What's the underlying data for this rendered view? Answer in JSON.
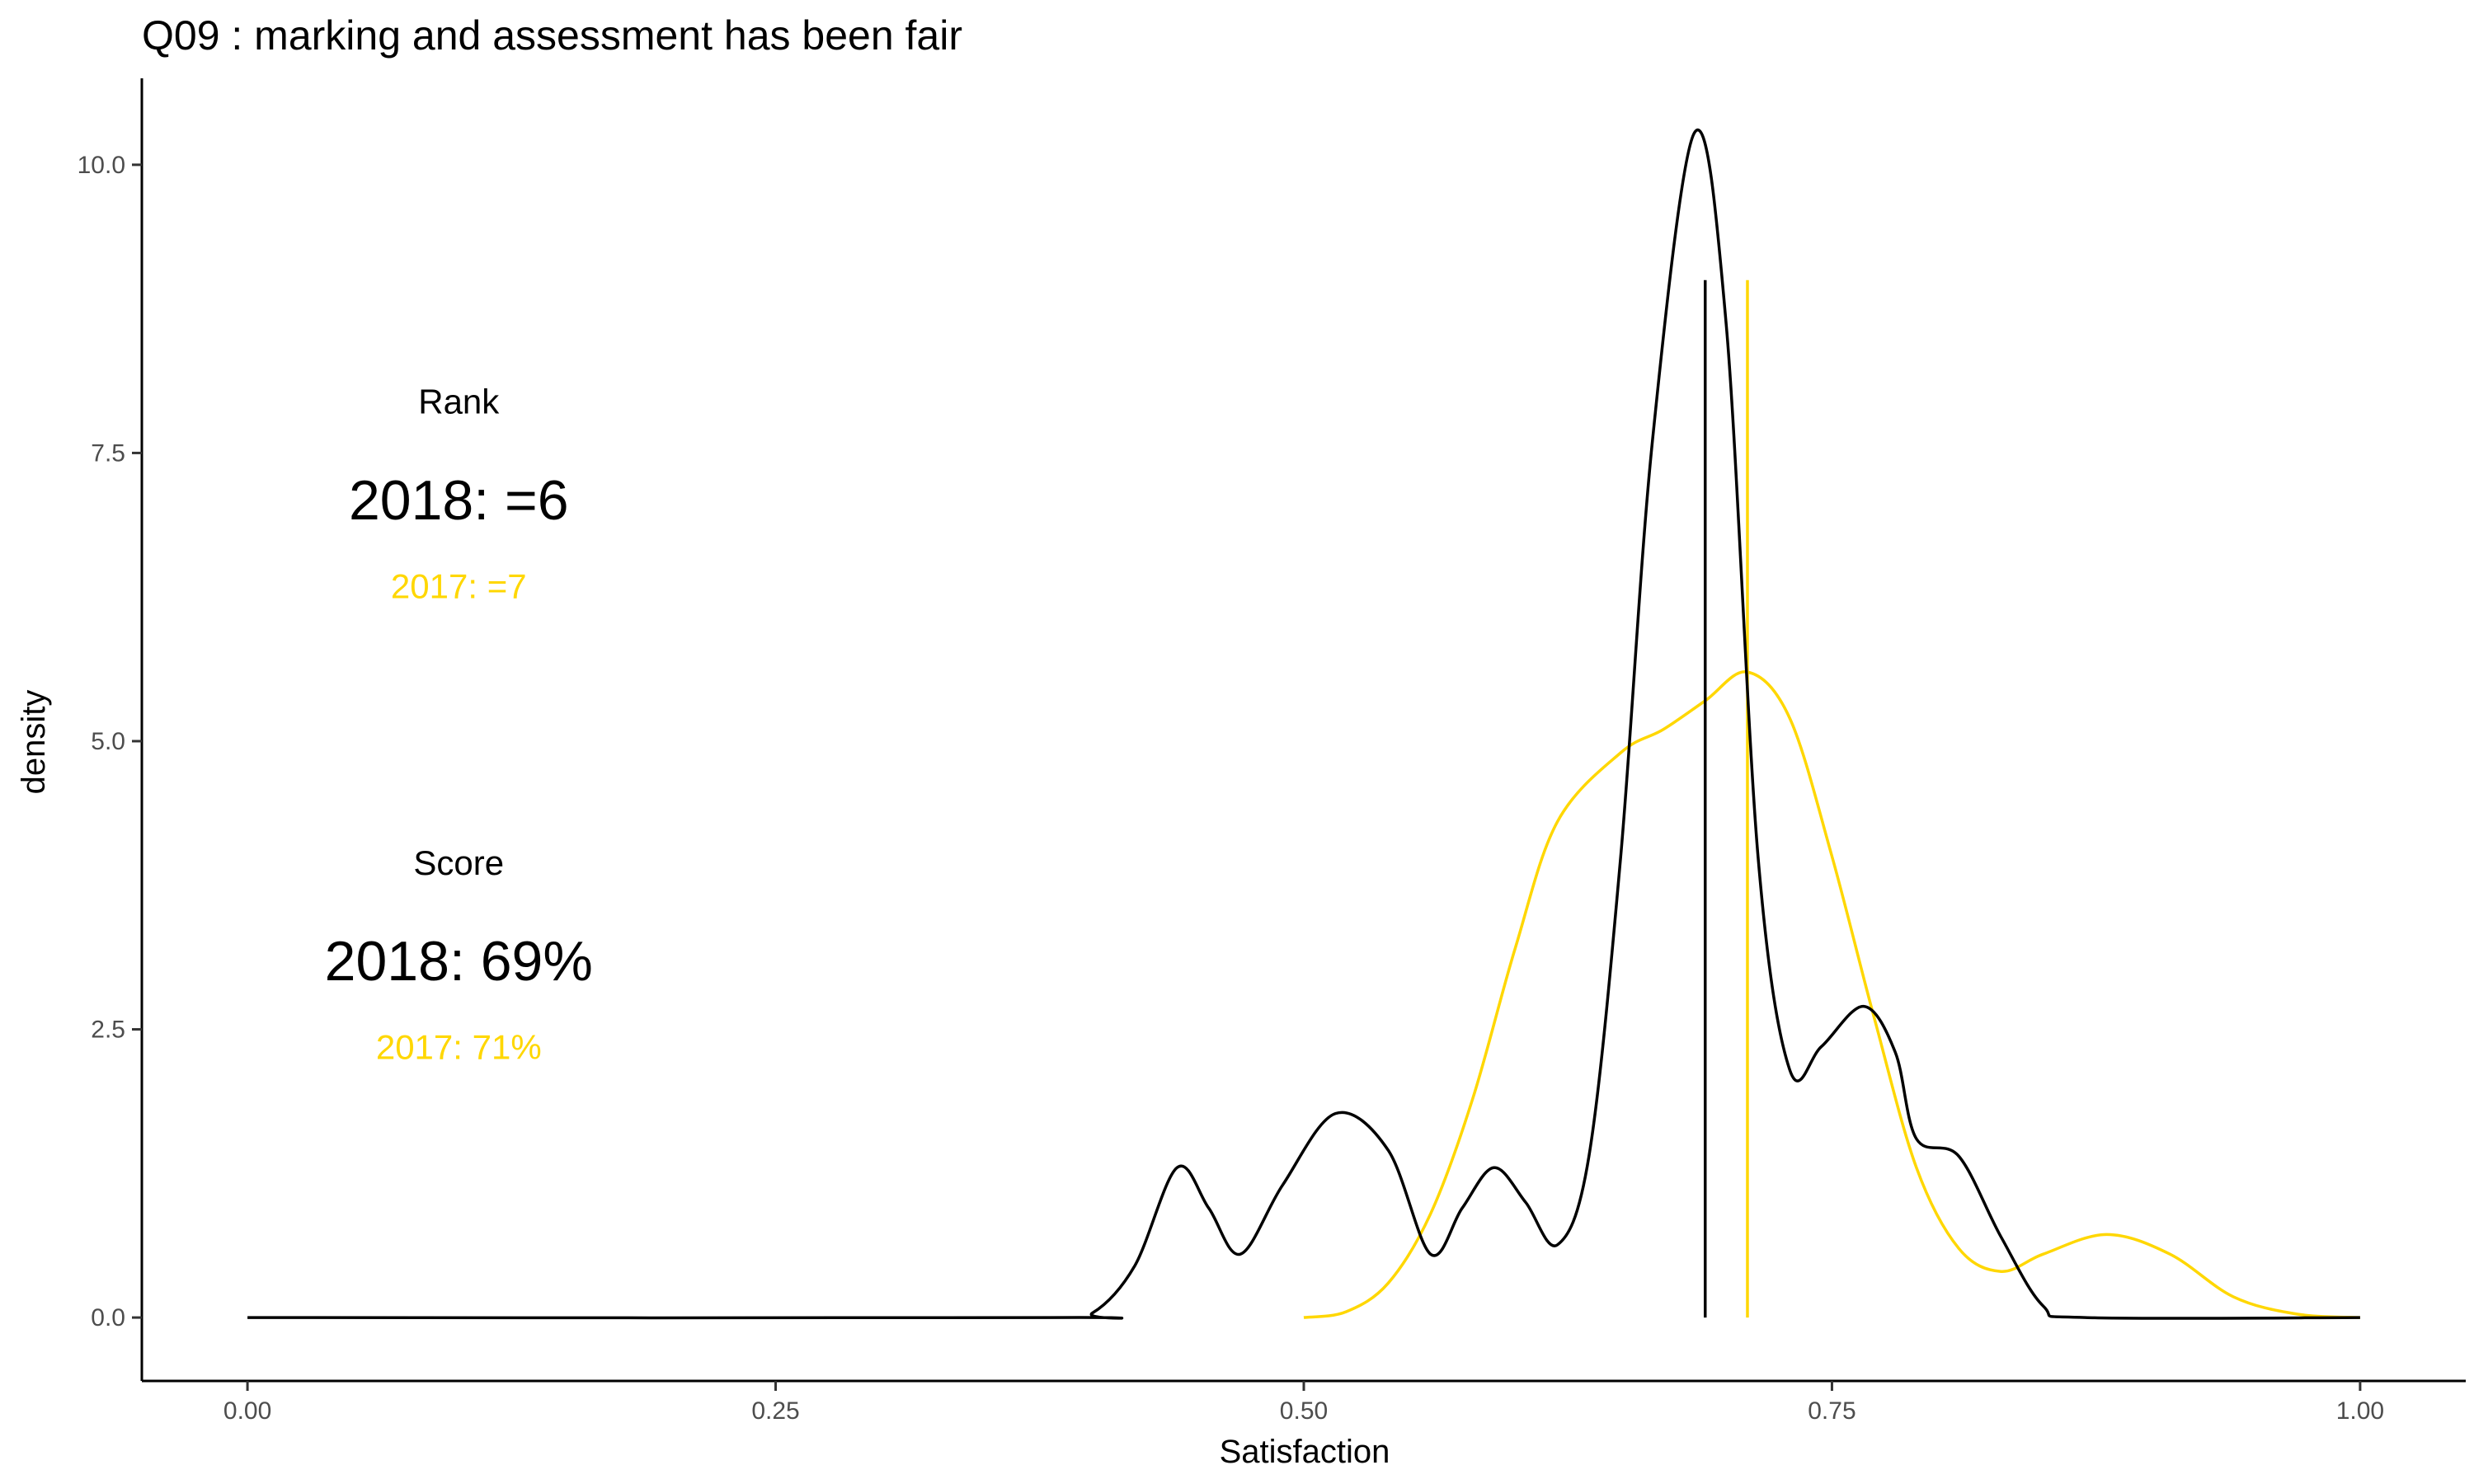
{
  "chart_data": {
    "type": "area",
    "title": "Q09 :   marking and assessment has been fair",
    "xlabel": "Satisfaction",
    "ylabel": "density",
    "xlim": [
      -0.05,
      1.05
    ],
    "ylim": [
      -0.55,
      10.75
    ],
    "x_ticks": [
      0.0,
      0.25,
      0.5,
      0.75,
      1.0
    ],
    "x_tick_labels": [
      "0.00",
      "0.25",
      "0.50",
      "0.75",
      "1.00"
    ],
    "y_ticks": [
      0.0,
      2.5,
      5.0,
      7.5,
      10.0
    ],
    "y_tick_labels": [
      "0.0",
      "2.5",
      "5.0",
      "7.5",
      "10.0"
    ],
    "grid": false,
    "legend": "none",
    "series": [
      {
        "year": "2018",
        "color": "#000000",
        "curve": [
          [
            0.0,
            0.0
          ],
          [
            0.38,
            0.0
          ],
          [
            0.4,
            0.04
          ],
          [
            0.42,
            0.45
          ],
          [
            0.44,
            1.3
          ],
          [
            0.455,
            0.95
          ],
          [
            0.47,
            0.55
          ],
          [
            0.49,
            1.15
          ],
          [
            0.515,
            1.77
          ],
          [
            0.54,
            1.45
          ],
          [
            0.56,
            0.55
          ],
          [
            0.575,
            0.95
          ],
          [
            0.59,
            1.3
          ],
          [
            0.605,
            1.0
          ],
          [
            0.62,
            0.63
          ],
          [
            0.635,
            1.4
          ],
          [
            0.65,
            4.0
          ],
          [
            0.665,
            7.6
          ],
          [
            0.685,
            10.28
          ],
          [
            0.7,
            8.6
          ],
          [
            0.715,
            4.0
          ],
          [
            0.73,
            2.15
          ],
          [
            0.745,
            2.35
          ],
          [
            0.765,
            2.7
          ],
          [
            0.78,
            2.3
          ],
          [
            0.79,
            1.55
          ],
          [
            0.81,
            1.4
          ],
          [
            0.83,
            0.7
          ],
          [
            0.85,
            0.1
          ],
          [
            0.87,
            0.0
          ],
          [
            1.0,
            0.0
          ]
        ],
        "mean_line": {
          "x": 0.69,
          "height": 9.0
        }
      },
      {
        "year": "2017",
        "color": "#FFD700",
        "curve": [
          [
            0.5,
            0.0
          ],
          [
            0.52,
            0.05
          ],
          [
            0.54,
            0.3
          ],
          [
            0.56,
            0.9
          ],
          [
            0.58,
            1.9
          ],
          [
            0.6,
            3.2
          ],
          [
            0.62,
            4.3
          ],
          [
            0.65,
            4.9
          ],
          [
            0.67,
            5.1
          ],
          [
            0.69,
            5.35
          ],
          [
            0.71,
            5.6
          ],
          [
            0.73,
            5.2
          ],
          [
            0.75,
            4.0
          ],
          [
            0.77,
            2.6
          ],
          [
            0.79,
            1.3
          ],
          [
            0.81,
            0.6
          ],
          [
            0.83,
            0.4
          ],
          [
            0.85,
            0.55
          ],
          [
            0.88,
            0.72
          ],
          [
            0.91,
            0.55
          ],
          [
            0.94,
            0.18
          ],
          [
            0.97,
            0.03
          ],
          [
            1.0,
            0.0
          ]
        ],
        "mean_line": {
          "x": 0.71,
          "height": 9.0
        }
      }
    ],
    "annotations": [
      {
        "text": "Rank",
        "x": 0.1,
        "y": 7.95,
        "color": "#000000",
        "size": "medium"
      },
      {
        "text": "2018: =6",
        "x": 0.1,
        "y": 7.1,
        "color": "#000000",
        "size": "large"
      },
      {
        "text": "2017: =7",
        "x": 0.1,
        "y": 6.35,
        "color": "#FFD700",
        "size": "medium"
      },
      {
        "text": "Score",
        "x": 0.1,
        "y": 3.95,
        "color": "#000000",
        "size": "medium"
      },
      {
        "text": "2018: 69%",
        "x": 0.1,
        "y": 3.1,
        "color": "#000000",
        "size": "large"
      },
      {
        "text": "2017: 71%",
        "x": 0.1,
        "y": 2.35,
        "color": "#FFD700",
        "size": "medium"
      }
    ]
  }
}
